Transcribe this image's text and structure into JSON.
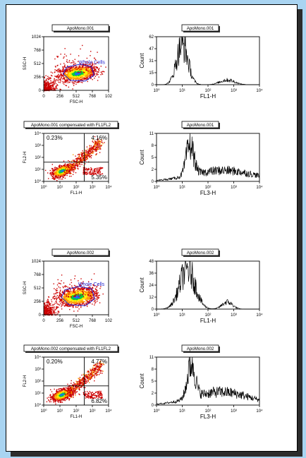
{
  "chart_data": [
    {
      "type": "scatter",
      "id": "dot1",
      "title": "ApoMono.001",
      "xlabel": "FSC-H",
      "ylabel": "SSC-H",
      "xlim": [
        0,
        1024
      ],
      "ylim": [
        0,
        1024
      ],
      "xticks": [
        "0",
        "256",
        "512",
        "768",
        "102"
      ],
      "yticks": [
        "0",
        "256",
        "512",
        "768",
        "1024"
      ],
      "gate_label": "Whole Cells",
      "population": {
        "center": [
          530,
          330
        ],
        "spread": [
          140,
          70
        ]
      }
    },
    {
      "type": "line",
      "id": "hist1",
      "title": "ApoMono.001",
      "xlabel": "FL1-H",
      "ylabel": "Count",
      "scale": "log",
      "xlim": [
        1,
        10000
      ],
      "ylim": [
        0,
        62
      ],
      "xticks": [
        "10⁰",
        "10¹",
        "10²",
        "10³",
        "10⁴"
      ],
      "yticks": [
        "0",
        "15",
        "31",
        "47",
        "62"
      ],
      "peaks": [
        {
          "x": 1.0,
          "height": 52,
          "width": 0.22
        },
        {
          "x": 2.75,
          "height": 6,
          "width": 0.28
        }
      ]
    },
    {
      "type": "scatter",
      "id": "dot2",
      "title": "ApoMono.001 compensated with FL1FL2",
      "xlabel": "FL1-H",
      "ylabel": "FL2-H",
      "scale": "log",
      "xlim": [
        1,
        10000
      ],
      "ylim": [
        1,
        10000
      ],
      "xticks": [
        "10⁰",
        "10¹",
        "10²",
        "10³",
        "10⁴"
      ],
      "yticks": [
        "10⁰",
        "10¹",
        "10²",
        "10³",
        "10⁴"
      ],
      "quadrant_divider": [
        2.5,
        1.6
      ],
      "quadrants": {
        "top_left": "0.23%",
        "top_right": "4.16%",
        "bottom_right": "5.35%"
      },
      "population": {
        "center": [
          1.1,
          0.9
        ],
        "spread": [
          0.3,
          0.22
        ]
      }
    },
    {
      "type": "line",
      "id": "hist2",
      "title": "ApoMono.001",
      "xlabel": "FL3-H",
      "ylabel": "Count",
      "scale": "log",
      "xlim": [
        1,
        10000
      ],
      "ylim": [
        0,
        11
      ],
      "xticks": [
        "10⁰",
        "10¹",
        "10²",
        "10³",
        "10⁴"
      ],
      "yticks": [
        "0",
        "2",
        "5",
        "8",
        "11"
      ],
      "peaks": [
        {
          "x": 1.3,
          "height": 7,
          "width": 0.15
        },
        {
          "x": 2.6,
          "height": 2.5,
          "width": 1.2
        }
      ]
    },
    {
      "type": "scatter",
      "id": "dot3",
      "title": "ApoMono.002",
      "xlabel": "FSC-H",
      "ylabel": "SSC-H",
      "xlim": [
        0,
        1024
      ],
      "ylim": [
        0,
        1024
      ],
      "xticks": [
        "0",
        "256",
        "512",
        "768",
        "102"
      ],
      "yticks": [
        "0",
        "256",
        "512",
        "768",
        "1024"
      ],
      "gate_label": "Whole Cells",
      "population": {
        "center": [
          520,
          350
        ],
        "spread": [
          150,
          80
        ]
      }
    },
    {
      "type": "line",
      "id": "hist3",
      "title": "ApoMono.002",
      "xlabel": "FL1-H",
      "ylabel": "Count",
      "scale": "log",
      "xlim": [
        1,
        10000
      ],
      "ylim": [
        0,
        48
      ],
      "xticks": [
        "10⁰",
        "10¹",
        "10²",
        "10³",
        "10⁴"
      ],
      "yticks": [
        "0",
        "12",
        "24",
        "36",
        "48"
      ],
      "peaks": [
        {
          "x": 1.2,
          "height": 40,
          "width": 0.3
        },
        {
          "x": 2.75,
          "height": 7,
          "width": 0.2
        }
      ]
    },
    {
      "type": "scatter",
      "id": "dot4",
      "title": "ApoMono.002 compensated with FL1FL2",
      "xlabel": "FL1-H",
      "ylabel": "FL2-H",
      "scale": "log",
      "xlim": [
        1,
        10000
      ],
      "ylim": [
        1,
        10000
      ],
      "xticks": [
        "10⁰",
        "10¹",
        "10²",
        "10³",
        "10⁴"
      ],
      "yticks": [
        "10⁰",
        "10¹",
        "10²",
        "10³",
        "10⁴"
      ],
      "quadrant_divider": [
        2.5,
        1.6
      ],
      "quadrants": {
        "top_left": "0.20%",
        "top_right": "4.77%",
        "bottom_right": "6.82%"
      },
      "population": {
        "center": [
          1.1,
          0.9
        ],
        "spread": [
          0.3,
          0.22
        ]
      }
    },
    {
      "type": "line",
      "id": "hist4",
      "title": "ApoMono.002",
      "xlabel": "FL3-H",
      "ylabel": "Count",
      "scale": "log",
      "xlim": [
        1,
        10000
      ],
      "ylim": [
        0,
        11
      ],
      "xticks": [
        "10⁰",
        "10¹",
        "10²",
        "10³",
        "10⁴"
      ],
      "yticks": [
        "0",
        "2",
        "5",
        "8",
        "11"
      ],
      "peaks": [
        {
          "x": 1.35,
          "height": 8,
          "width": 0.15
        },
        {
          "x": 2.5,
          "height": 3,
          "width": 1.1
        }
      ]
    }
  ],
  "colors": {
    "page_background": "#a9d4f1",
    "dot_low": "#cc0000",
    "dot_mid": "#ff9900",
    "dot_high": "#ffee00",
    "dot_core": "#00cc44",
    "dot_center": "#2266ff",
    "gate": "#2222cc",
    "gate_label": "#2222cc"
  }
}
